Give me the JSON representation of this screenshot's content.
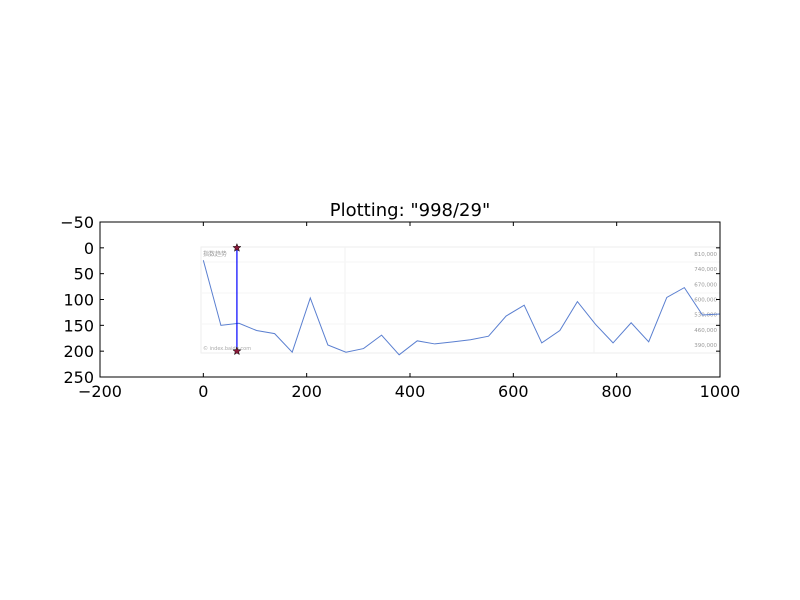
{
  "chart_data": {
    "type": "line",
    "title": "Plotting: \"998/29\"",
    "xlabel": "",
    "ylabel": "",
    "xlim": [
      -200,
      1000
    ],
    "ylim": [
      -50,
      250
    ],
    "y_inverted": true,
    "x_ticks": [
      -200,
      0,
      200,
      400,
      600,
      800,
      1000
    ],
    "y_ticks": [
      -50,
      0,
      50,
      100,
      150,
      200,
      250
    ],
    "x_tick_labels": [
      "−200",
      "0",
      "200",
      "400",
      "600",
      "800",
      "1000"
    ],
    "y_tick_labels": [
      "−50",
      "0",
      "50",
      "100",
      "150",
      "200",
      "250"
    ],
    "grid": false,
    "series": [
      {
        "color": "#5a7fd0",
        "x": [
          0,
          34,
          69,
          103,
          138,
          172,
          207,
          241,
          276,
          310,
          345,
          379,
          414,
          448,
          483,
          517,
          552,
          586,
          621,
          655,
          690,
          724,
          759,
          793,
          828,
          862,
          897,
          931,
          966,
          1000
        ],
        "y": [
          24,
          150,
          146,
          160,
          166,
          202,
          97,
          188,
          202,
          195,
          169,
          207,
          180,
          186,
          182,
          178,
          171,
          132,
          111,
          184,
          160,
          104,
          148,
          184,
          145,
          182,
          96,
          77,
          130,
          128
        ]
      }
    ],
    "marker_line": {
      "x": 65,
      "y_start": 0,
      "y_end": 200,
      "color": "#0000ff",
      "marker": "star",
      "marker_color": "#8b1a3a"
    },
    "background_image": {
      "right_labels": [
        "810,000",
        "740,000",
        "670,000",
        "600,000",
        "530,000",
        "460,000",
        "390,000"
      ],
      "top_left_label": "指数趋势",
      "bottom_left_label": "© index.baidu.com"
    }
  }
}
